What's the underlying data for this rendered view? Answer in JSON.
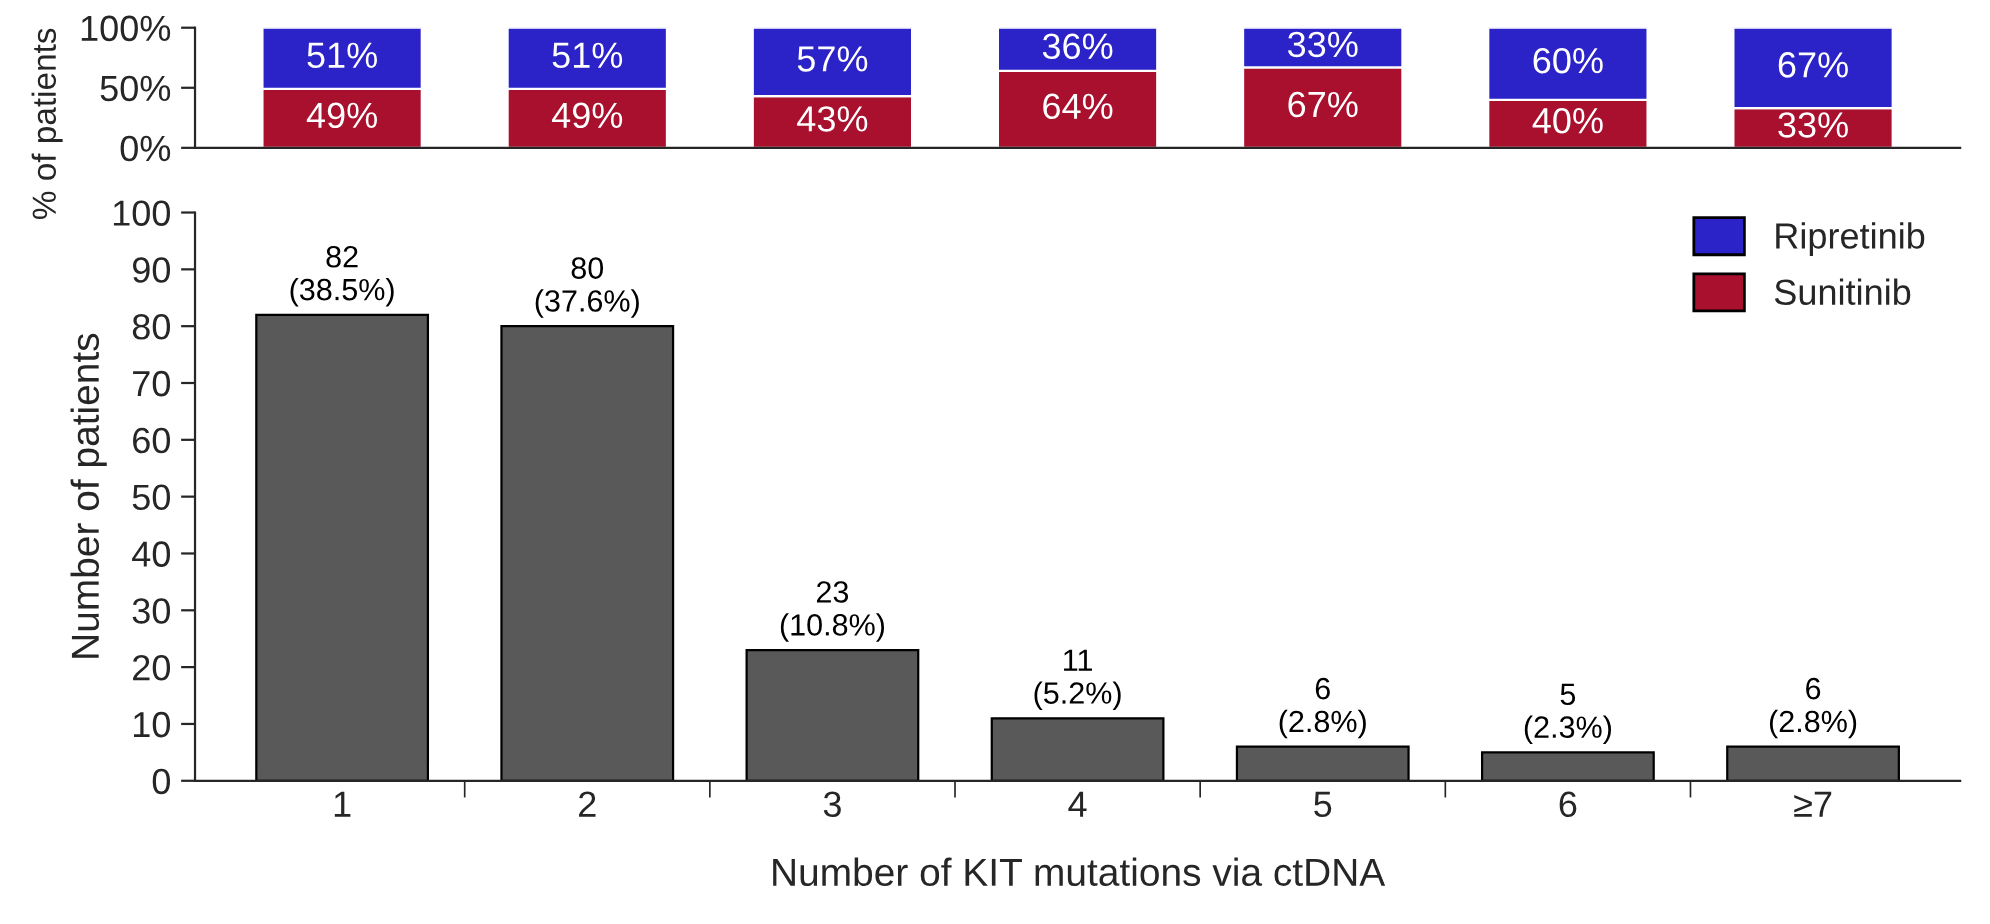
{
  "chart_data": [
    {
      "type": "bar",
      "stacked": true,
      "ylabel": "% of patients",
      "categories": [
        null,
        null,
        null,
        null,
        null,
        null,
        null
      ],
      "ylim": [
        0,
        100
      ],
      "yticks": [
        {
          "value": 0,
          "label": "0%"
        },
        {
          "value": 50,
          "label": "50%"
        },
        {
          "value": 100,
          "label": "100%"
        }
      ],
      "legend": "bottom right",
      "series": [
        {
          "name": "Sunitinib",
          "color": "#a8102e",
          "values": [
            49,
            49,
            43,
            64,
            67,
            40,
            33
          ],
          "value_labels": [
            "49%",
            "49%",
            "43%",
            "64%",
            "67%",
            "40%",
            "33%"
          ]
        },
        {
          "name": "Ripretinib",
          "color": "#2b22c8",
          "values": [
            51,
            51,
            57,
            36,
            33,
            60,
            67
          ],
          "value_labels": [
            "51%",
            "51%",
            "57%",
            "36%",
            "33%",
            "60%",
            "67%"
          ]
        }
      ]
    },
    {
      "type": "bar",
      "xlabel": "Number of KIT mutations via ctDNA",
      "ylabel": "Number of patients",
      "categories": [
        "1",
        "2",
        "3",
        "4",
        "5",
        "6",
        "≥7"
      ],
      "ylim": [
        0,
        100
      ],
      "yticks": [
        0,
        10,
        20,
        30,
        40,
        50,
        60,
        70,
        80,
        90,
        100
      ],
      "series": [
        {
          "color": "#595959",
          "values": [
            82,
            80,
            23,
            11,
            6,
            5,
            6
          ],
          "value_labels": [
            "82\n(38.5%)",
            "80\n(37.6%)",
            "23\n(10.8%)",
            "11\n(5.2%)",
            "6\n(2.8%)",
            "5\n(2.3%)",
            "6\n(2.8%)"
          ]
        }
      ]
    }
  ]
}
